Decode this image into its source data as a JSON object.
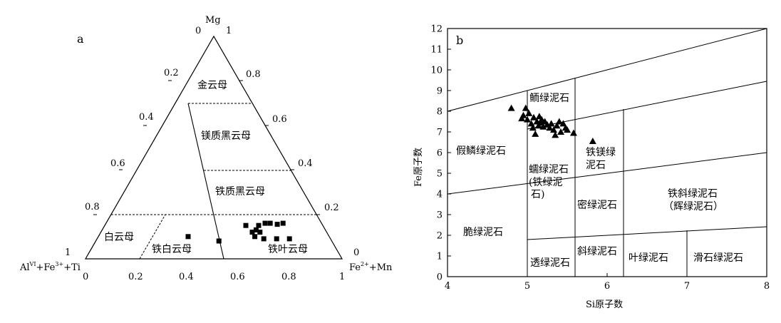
{
  "chart_data": [
    {
      "id": "a",
      "type": "scatter",
      "panel_label": "a",
      "vertex_labels": {
        "top": "Mg",
        "left_main": "Al",
        "left_sup": "VI",
        "left_rest": "+Fe",
        "left_sup2": "3+",
        "left_end": "+Ti",
        "right_main": "Fe",
        "right_sup": "2+",
        "right_end": "+Mn"
      },
      "bottom_ticks": [
        "0",
        "0.2",
        "0.4",
        "0.6",
        "0.8",
        "1"
      ],
      "left_ticks": [
        "0",
        "0.2",
        "0.4",
        "0.6",
        "0.8",
        "1"
      ],
      "right_ticks": [
        "1",
        "0.8",
        "0.6",
        "0.4",
        "0.2",
        "0"
      ],
      "fields": [
        {
          "name": "金云母"
        },
        {
          "name": "镁质黑云母"
        },
        {
          "name": "铁质黑云母"
        },
        {
          "name": "白云母"
        },
        {
          "name": "铁白云母"
        },
        {
          "name": "铁叶云母"
        }
      ],
      "points": [
        {
          "fe": 0.35,
          "mg": 0.1
        },
        {
          "fe": 0.48,
          "mg": 0.08
        },
        {
          "fe": 0.55,
          "mg": 0.15
        },
        {
          "fe": 0.6,
          "mg": 0.15
        },
        {
          "fe": 0.62,
          "mg": 0.16
        },
        {
          "fe": 0.64,
          "mg": 0.16
        },
        {
          "fe": 0.67,
          "mg": 0.155
        },
        {
          "fe": 0.69,
          "mg": 0.16
        },
        {
          "fe": 0.59,
          "mg": 0.12
        },
        {
          "fe": 0.6,
          "mg": 0.13
        },
        {
          "fe": 0.62,
          "mg": 0.12
        },
        {
          "fe": 0.61,
          "mg": 0.1
        },
        {
          "fe": 0.65,
          "mg": 0.09
        },
        {
          "fe": 0.7,
          "mg": 0.09
        },
        {
          "fe": 0.75,
          "mg": 0.09
        }
      ]
    },
    {
      "id": "b",
      "type": "scatter",
      "panel_label": "b",
      "xlabel": "Si原子数",
      "ylabel": "Fe原子数",
      "xlim": [
        4,
        8
      ],
      "ylim": [
        0,
        12
      ],
      "xticks": [
        4,
        5,
        6,
        7,
        8
      ],
      "yticks": [
        0,
        1,
        2,
        3,
        4,
        5,
        6,
        7,
        8,
        9,
        10,
        11,
        12
      ],
      "fields": [
        {
          "name": "鲕绿泥石",
          "lines": [
            "鲕绿泥石"
          ]
        },
        {
          "name": "假鳞绿泥石",
          "lines": [
            "假鳞绿泥石"
          ]
        },
        {
          "name": "铁镁绿泥石",
          "lines": [
            "铁镁绿",
            "泥石"
          ]
        },
        {
          "name": "蠕绿泥石(铁绿泥石)",
          "lines": [
            "蠕绿泥石",
            "(铁绿泥",
            "石)"
          ]
        },
        {
          "name": "铁斜绿泥石(辉绿泥石)",
          "lines": [
            "铁斜绿泥石",
            "（辉绿泥石）"
          ]
        },
        {
          "name": "密绿泥石",
          "lines": [
            "密绿泥石"
          ]
        },
        {
          "name": "脆绿泥石",
          "lines": [
            "脆绿泥石"
          ]
        },
        {
          "name": "斜绿泥石",
          "lines": [
            "斜绿泥石"
          ]
        },
        {
          "name": "叶绿泥石",
          "lines": [
            "叶绿泥石"
          ]
        },
        {
          "name": "滑石绿泥石",
          "lines": [
            "滑石绿泥石"
          ]
        },
        {
          "name": "透绿泥石",
          "lines": [
            "透绿泥石"
          ]
        }
      ],
      "points": [
        {
          "x": 4.8,
          "y": 8.15
        },
        {
          "x": 4.93,
          "y": 7.65
        },
        {
          "x": 4.95,
          "y": 7.8
        },
        {
          "x": 4.98,
          "y": 8.15
        },
        {
          "x": 5.0,
          "y": 7.6
        },
        {
          "x": 5.02,
          "y": 7.9
        },
        {
          "x": 5.05,
          "y": 7.4
        },
        {
          "x": 5.07,
          "y": 7.2
        },
        {
          "x": 5.08,
          "y": 7.7
        },
        {
          "x": 5.1,
          "y": 6.9
        },
        {
          "x": 5.12,
          "y": 7.5
        },
        {
          "x": 5.14,
          "y": 7.3
        },
        {
          "x": 5.15,
          "y": 7.75
        },
        {
          "x": 5.17,
          "y": 7.45
        },
        {
          "x": 5.18,
          "y": 7.6
        },
        {
          "x": 5.2,
          "y": 7.25
        },
        {
          "x": 5.22,
          "y": 7.5
        },
        {
          "x": 5.25,
          "y": 7.35
        },
        {
          "x": 5.28,
          "y": 7.2
        },
        {
          "x": 5.3,
          "y": 7.4
        },
        {
          "x": 5.33,
          "y": 7.1
        },
        {
          "x": 5.35,
          "y": 6.85
        },
        {
          "x": 5.37,
          "y": 7.3
        },
        {
          "x": 5.4,
          "y": 7.5
        },
        {
          "x": 5.42,
          "y": 7.0
        },
        {
          "x": 5.45,
          "y": 7.4
        },
        {
          "x": 5.48,
          "y": 7.2
        },
        {
          "x": 5.5,
          "y": 7.1
        },
        {
          "x": 5.58,
          "y": 6.95
        },
        {
          "x": 5.82,
          "y": 6.55
        }
      ]
    }
  ]
}
